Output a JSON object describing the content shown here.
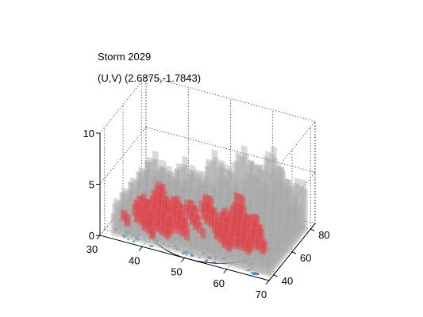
{
  "chart_data": {
    "type": "surface3d",
    "title_lines": [
      "Storm 2029",
      "(U,V) (2.6875,-1.7843)"
    ],
    "x_axis": {
      "ticks": [
        "30",
        "40",
        "50",
        "60",
        "70"
      ],
      "range": [
        30,
        70
      ]
    },
    "y_axis": {
      "ticks": [
        "40",
        "60",
        "80"
      ],
      "range": [
        35,
        85
      ]
    },
    "z_axis": {
      "ticks": [
        "0",
        "5",
        "10"
      ],
      "range": [
        0,
        10
      ]
    },
    "grid": true,
    "layers": [
      {
        "role": "outer isosurface",
        "color": "#a8a8a8",
        "opacity": 0.75
      },
      {
        "role": "inner isosurface",
        "color": "#d9474d",
        "opacity": 0.85
      },
      {
        "role": "base contours",
        "colors": [
          "#2c5fb8",
          "#3fa7c9",
          "#52b25b",
          "#000000"
        ]
      }
    ]
  }
}
